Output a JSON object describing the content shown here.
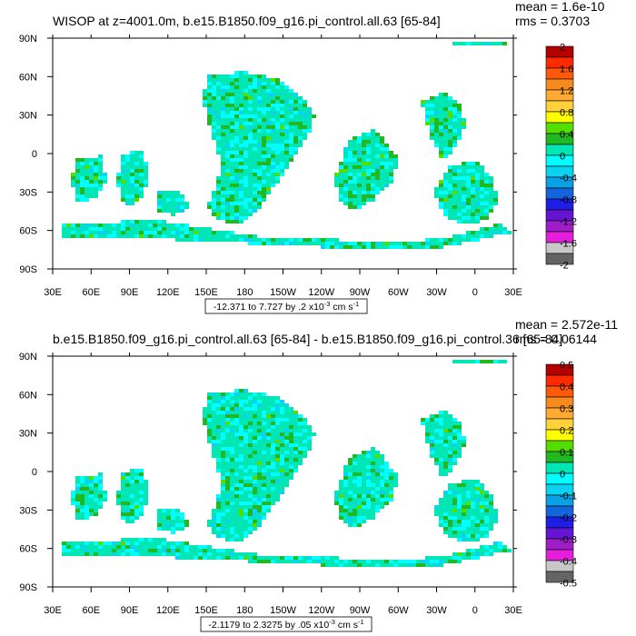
{
  "chart_data": [
    {
      "type": "heatmap",
      "title": "WISOP at z=4001.0m, b.e15.B1850.f09_g16.pi_control.all.63 [65-84]",
      "stats": [
        "mean = 1.6e-10",
        "rms = 0.3703"
      ],
      "x_ticks": [
        "30E",
        "60E",
        "90E",
        "120E",
        "150E",
        "180",
        "150W",
        "120W",
        "90W",
        "60W",
        "30W",
        "0",
        "30E"
      ],
      "y_ticks": [
        "90N",
        "60N",
        "30N",
        "0",
        "30S",
        "60S",
        "90S"
      ],
      "x_range_deg": [
        30,
        390
      ],
      "y_range_deg": [
        -90,
        90
      ],
      "range_prefix": "-12.371 to 7.727 by .2 x10",
      "range_exp": "-3",
      "range_units": " cm s",
      "range_units_exp": "-1",
      "colorbar_labels": [
        "2",
        "1.6",
        "1.2",
        "0.8",
        "0.4",
        "0",
        "-0.4",
        "-0.8",
        "-1.2",
        "-1.6",
        "-2"
      ]
    },
    {
      "type": "heatmap",
      "title": "b.e15.B1850.f09_g16.pi_control.all.63 [65-84] - b.e15.B1850.f09_g16.pi_control.36 [65-84]",
      "stats": [
        "mean = 2.572e-11",
        "rms = 0.06144"
      ],
      "x_ticks": [
        "30E",
        "60E",
        "90E",
        "120E",
        "150E",
        "180",
        "150W",
        "120W",
        "90W",
        "60W",
        "30W",
        "0",
        "30E"
      ],
      "y_ticks": [
        "90N",
        "60N",
        "30N",
        "0",
        "30S",
        "60S",
        "90S"
      ],
      "x_range_deg": [
        30,
        390
      ],
      "y_range_deg": [
        -90,
        90
      ],
      "range_prefix": "-2.1179 to 2.3275 by .05 x10",
      "range_exp": "-3",
      "range_units": " cm s",
      "range_units_exp": "-1",
      "colorbar_labels": [
        "0.5",
        "0.4",
        "0.3",
        "0.2",
        "0.1",
        "0",
        "-0.1",
        "-0.2",
        "-0.3",
        "-0.4",
        "-0.5"
      ]
    }
  ],
  "colorbar_colors": [
    "#b40000",
    "#ff2a00",
    "#ff5a0a",
    "#f58a1e",
    "#ffaa32",
    "#ffd23c",
    "#ffff00",
    "#55dd00",
    "#22b822",
    "#00e6b4",
    "#00ffff",
    "#0ad2f0",
    "#0aa0e6",
    "#1464dc",
    "#1e1ee6",
    "#6414d2",
    "#a01ec8",
    "#e61edc",
    "#c8c8c8",
    "#646464"
  ],
  "ocean_colors": [
    "#00e6b4",
    "#00ffff",
    "#22b822",
    "#0ad2f0",
    "#55dd00"
  ]
}
